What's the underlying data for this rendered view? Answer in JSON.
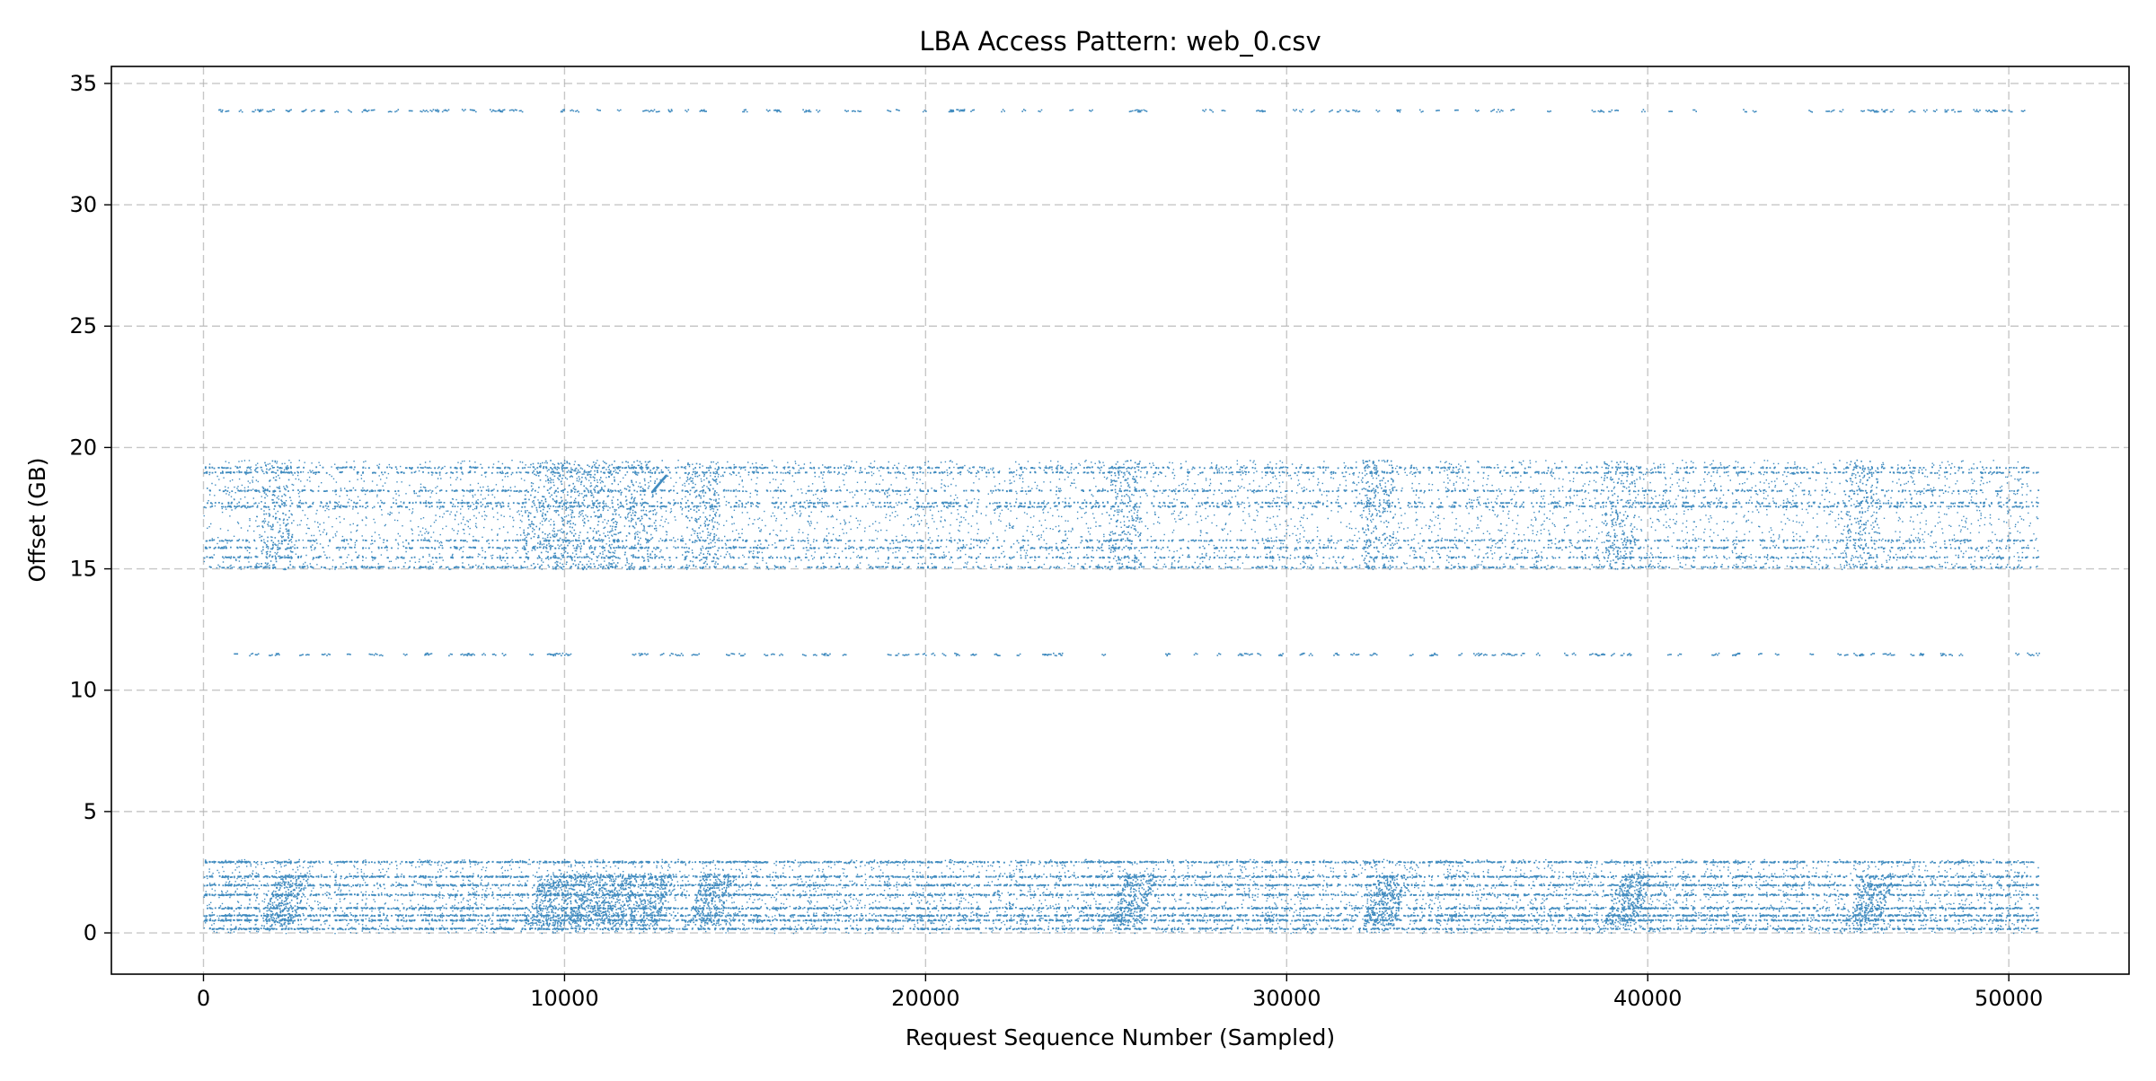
{
  "chart_data": {
    "type": "scatter",
    "title": "LBA Access Pattern: web_0.csv",
    "xlabel": "Request Sequence Number (Sampled)",
    "ylabel": "Offset (GB)",
    "xlim": [
      -2550,
      53330
    ],
    "ylim": [
      -1.7,
      35.7
    ],
    "x_ticks": [
      0,
      10000,
      20000,
      30000,
      40000,
      50000
    ],
    "y_ticks": [
      0,
      5,
      10,
      15,
      20,
      25,
      30,
      35
    ],
    "grid": true,
    "legend": "none",
    "marker_color": "#1f77b4",
    "x_range_of_points": [
      0,
      50800
    ],
    "bands": [
      {
        "name": "low",
        "y_range": [
          0.0,
          3.05
        ],
        "density": "dense",
        "dense_lines": [
          0.2,
          0.55,
          0.75,
          1.05,
          1.6,
          2.0,
          2.35,
          2.95
        ]
      },
      {
        "name": "mid-high",
        "y_range": [
          15.0,
          19.5
        ],
        "density": "medium",
        "dense_lines": [
          15.1,
          15.5,
          15.9,
          16.2,
          17.6,
          17.75,
          18.25,
          19.0,
          19.2
        ]
      },
      {
        "name": "isolated-11.5",
        "y_range": [
          11.45,
          11.55
        ],
        "density": "sparse"
      },
      {
        "name": "isolated-33.9",
        "y_range": [
          33.85,
          33.95
        ],
        "density": "sparse"
      }
    ],
    "bursts_x": [
      2000,
      9300,
      10200,
      11100,
      12100,
      13800,
      25500,
      32500,
      39200,
      45900
    ]
  }
}
